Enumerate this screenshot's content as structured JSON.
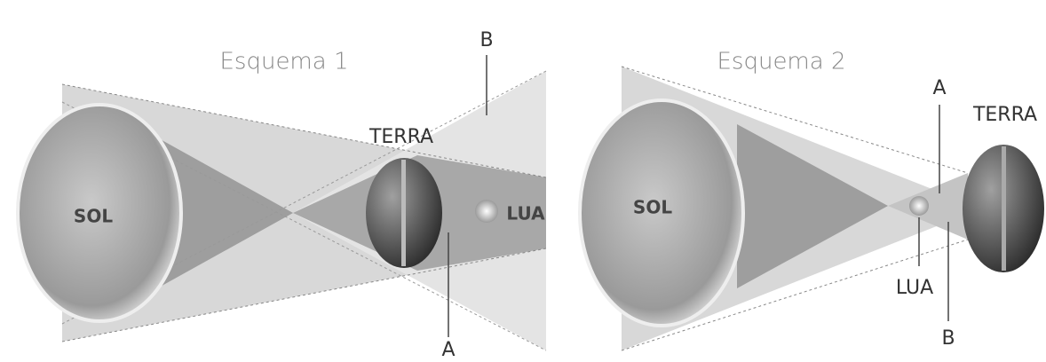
{
  "diagrams": [
    {
      "title": "Esquema 1",
      "sun": "SOL",
      "earth": "TERRA",
      "moon": "LUA",
      "point_a": "A",
      "point_b": "B"
    },
    {
      "title": "Esquema 2",
      "sun": "SOL",
      "earth": "TERRA",
      "moon": "LUA",
      "point_a": "A",
      "point_b": "B"
    }
  ]
}
